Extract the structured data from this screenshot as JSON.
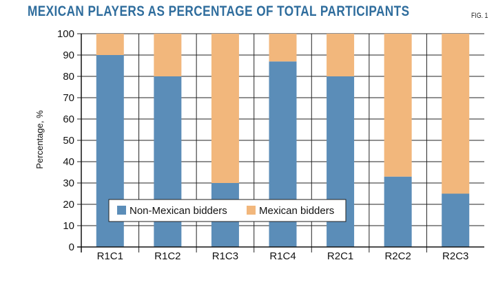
{
  "figure": {
    "title": "MEXICAN PLAYERS AS PERCENTAGE OF TOTAL PARTICIPANTS",
    "fig_label": "FIG. 1"
  },
  "chart_data": {
    "type": "bar",
    "stacked": true,
    "categories": [
      "R1C1",
      "R1C2",
      "R1C3",
      "R1C4",
      "R2C1",
      "R2C2",
      "R2C3"
    ],
    "series": [
      {
        "name": "Non-Mexican bidders",
        "color": "#5b8db8",
        "values": [
          90,
          80,
          30,
          87,
          80,
          33,
          25
        ]
      },
      {
        "name": "Mexican bidders",
        "color": "#f2b77c",
        "values": [
          10,
          20,
          70,
          13,
          20,
          67,
          75
        ]
      }
    ],
    "ylabel": "Percentage, %",
    "ylim": [
      0,
      100
    ],
    "yticks": [
      0,
      10,
      20,
      30,
      40,
      50,
      60,
      70,
      80,
      90,
      100
    ],
    "grid": true,
    "legend_position": "lower-left"
  }
}
